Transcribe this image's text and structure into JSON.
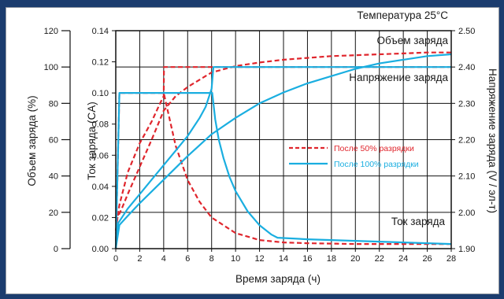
{
  "chart_data": {
    "type": "line",
    "temperature_note": "Температура 25°C",
    "xlabel": "Время заряда (ч)",
    "xlim": [
      0,
      28
    ],
    "xticks": [
      0,
      2,
      4,
      6,
      8,
      10,
      12,
      14,
      16,
      18,
      20,
      22,
      24,
      26,
      28
    ],
    "axes": {
      "capacity": {
        "label": "Объем заряда (%)",
        "lim": [
          0,
          120
        ],
        "ticks": [
          0,
          20,
          40,
          60,
          80,
          100,
          120
        ],
        "labels": [
          "0",
          "20",
          "40",
          "60",
          "80",
          "100",
          "120"
        ]
      },
      "current": {
        "label": "Ток заряда  (CA)",
        "lim": [
          0,
          0.14
        ],
        "ticks": [
          0,
          0.02,
          0.04,
          0.06,
          0.08,
          0.1,
          0.12,
          0.14
        ],
        "labels": [
          "0.00",
          "0.02",
          "0.04",
          "0.06",
          "0.08",
          "0.10",
          "0.12",
          "0.14"
        ]
      },
      "voltage": {
        "label": "Напряжение заряда (V / эл-т)",
        "lim": [
          1.9,
          2.5
        ],
        "ticks": [
          1.9,
          2.0,
          2.1,
          2.2,
          2.3,
          2.4,
          2.5
        ],
        "labels": [
          "1.90",
          "2.00",
          "2.10",
          "2.20",
          "2.30",
          "2.40",
          "2.50"
        ]
      }
    },
    "grid": true,
    "curve_labels": {
      "capacity": "Объем заряда",
      "voltage": "Напряжение заряда",
      "current": "Ток заряда"
    },
    "legend": {
      "position": "right-middle",
      "entries": [
        {
          "name": "После 50% разрядки",
          "color": "#e0262d",
          "style": "dashed"
        },
        {
          "name": "После 100% разрядки",
          "color": "#1aaee0",
          "style": "solid"
        }
      ]
    },
    "series": [
      {
        "name": "После 50% разрядки",
        "quantity": "capacity",
        "axis": "capacity",
        "color": "#e0262d",
        "style": "dashed",
        "x": [
          0,
          0.5,
          1,
          2,
          3,
          4,
          5,
          6,
          7,
          8,
          10,
          12,
          14,
          16,
          18,
          20,
          22,
          24,
          26,
          28
        ],
        "y": [
          15,
          22,
          30,
          45,
          60,
          76,
          84,
          89,
          93,
          97,
          100.5,
          102.5,
          104,
          105,
          106,
          106.5,
          107,
          107.5,
          108,
          108
        ]
      },
      {
        "name": "После 50% разрядки",
        "quantity": "voltage",
        "axis": "voltage",
        "color": "#e0262d",
        "style": "dashed",
        "x": [
          0,
          0.3,
          1,
          2,
          3,
          3.7,
          4,
          4.02,
          28
        ],
        "y": [
          1.95,
          2.02,
          2.11,
          2.19,
          2.25,
          2.3,
          2.32,
          2.4,
          2.4
        ]
      },
      {
        "name": "После 50% разрядки",
        "quantity": "current",
        "axis": "current",
        "color": "#e0262d",
        "style": "dashed",
        "x": [
          0,
          0.3,
          4,
          4.5,
          5,
          6,
          7,
          8,
          10,
          12,
          14,
          16,
          20,
          24,
          28
        ],
        "y": [
          0,
          0.1,
          0.1,
          0.083,
          0.066,
          0.044,
          0.03,
          0.02,
          0.01,
          0.0055,
          0.004,
          0.0035,
          0.003,
          0.003,
          0.003
        ]
      },
      {
        "name": "После 100% разрядки",
        "quantity": "capacity",
        "axis": "capacity",
        "color": "#1aaee0",
        "style": "solid",
        "x": [
          0,
          0.3,
          1,
          2,
          4,
          6,
          8,
          10,
          12,
          14,
          16,
          18,
          20,
          22,
          24,
          26,
          28
        ],
        "y": [
          0,
          13,
          18,
          25,
          38,
          51,
          63,
          72,
          80,
          86,
          91,
          95,
          99,
          102,
          104,
          106,
          107
        ]
      },
      {
        "name": "После 100% разрядки",
        "quantity": "voltage",
        "axis": "voltage",
        "color": "#1aaee0",
        "style": "solid",
        "x": [
          0,
          0.2,
          1,
          2,
          3,
          4,
          5,
          6,
          7,
          7.5,
          8,
          8.15,
          28
        ],
        "y": [
          1.9,
          1.97,
          2.01,
          2.05,
          2.09,
          2.13,
          2.17,
          2.21,
          2.26,
          2.29,
          2.34,
          2.4,
          2.4
        ]
      },
      {
        "name": "После 100% разрядки",
        "quantity": "current",
        "axis": "current",
        "color": "#1aaee0",
        "style": "solid",
        "x": [
          0,
          0.3,
          8.05,
          8.3,
          8.6,
          9,
          9.5,
          10,
          11,
          12,
          13,
          13.5,
          14,
          16,
          18,
          20,
          22,
          24,
          26,
          28
        ],
        "y": [
          0,
          0.1,
          0.1,
          0.083,
          0.07,
          0.058,
          0.046,
          0.037,
          0.024,
          0.015,
          0.009,
          0.007,
          0.0068,
          0.006,
          0.0055,
          0.005,
          0.0045,
          0.004,
          0.0035,
          0.003
        ]
      }
    ]
  }
}
